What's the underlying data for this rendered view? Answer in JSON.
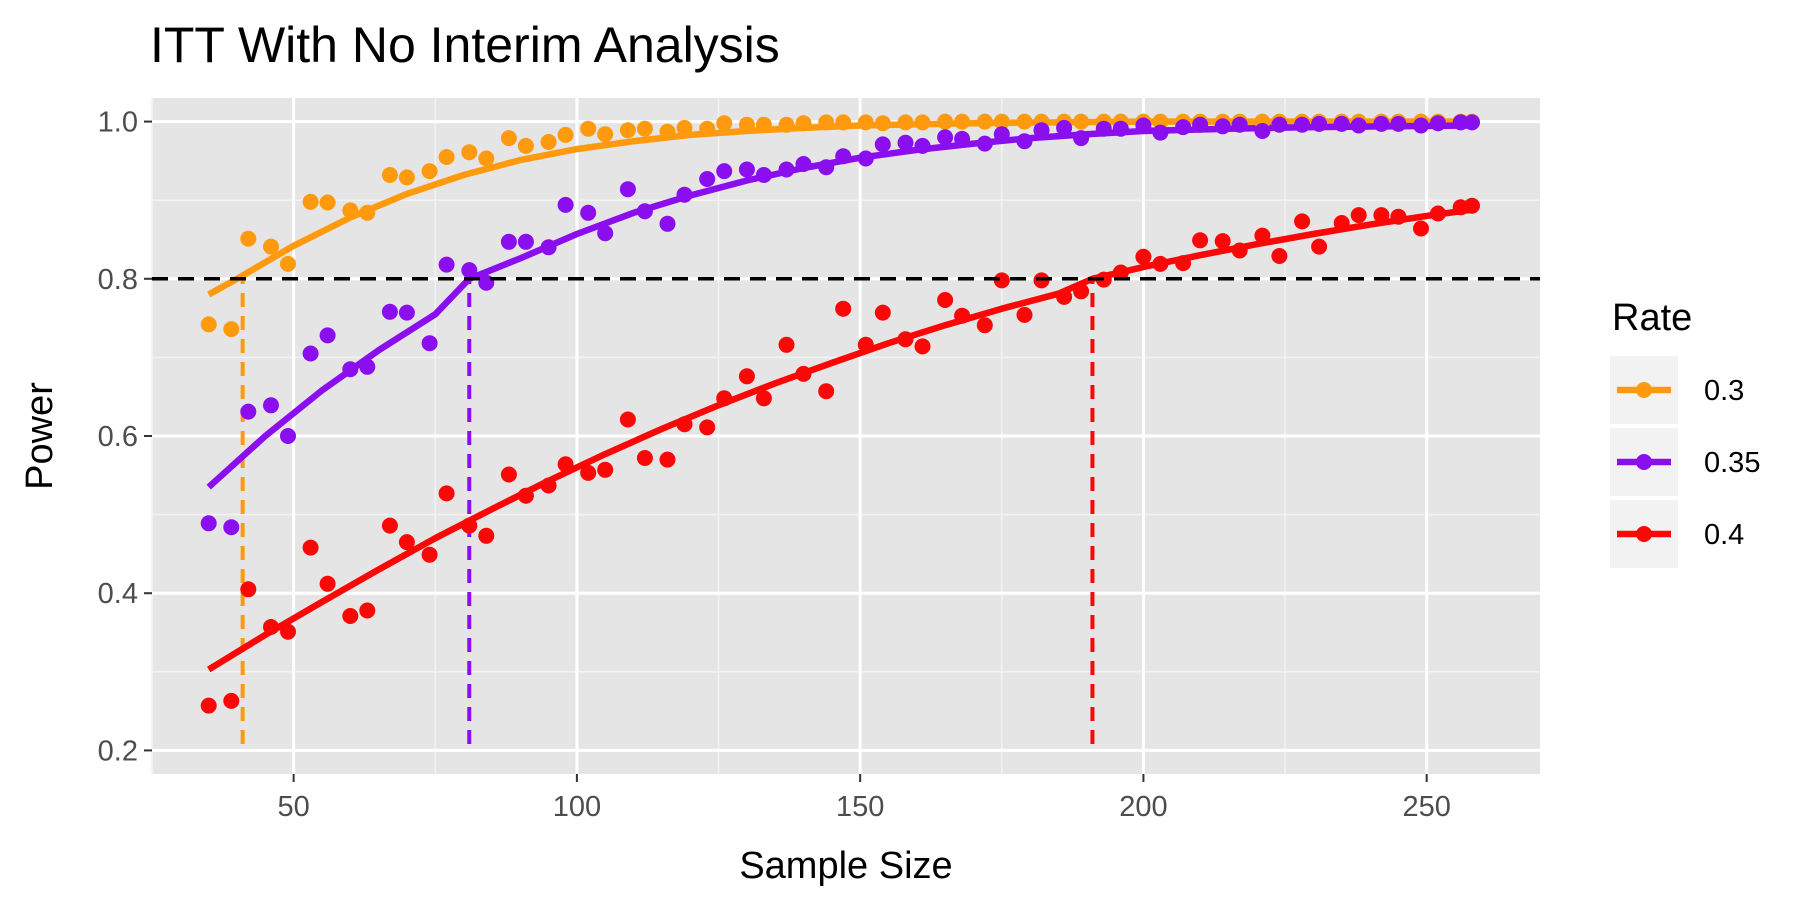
{
  "chart_data": {
    "type": "scatter",
    "title": "ITT With No Interim Analysis",
    "xlabel": "Sample Size",
    "ylabel": "Power",
    "xlim": [
      25,
      270
    ],
    "ylim": [
      0.17,
      1.03
    ],
    "x_ticks": [
      50,
      100,
      150,
      200,
      250
    ],
    "y_ticks": [
      0.2,
      0.4,
      0.6,
      0.8,
      1.0
    ],
    "x_tick_labels": [
      "50",
      "100",
      "150",
      "200",
      "250"
    ],
    "y_tick_labels": [
      "0.2",
      "0.4",
      "0.6",
      "0.8",
      "1.0"
    ],
    "grid": true,
    "background": "#e5e5e5",
    "reference_line": {
      "y": 0.8,
      "style": "dashed",
      "color": "#000000"
    },
    "legend": {
      "title": "Rate",
      "placement": "right"
    },
    "series": [
      {
        "name": "0.3",
        "color": "#ff9a0e",
        "threshold_x": 41,
        "points": [
          [
            35,
            0.742
          ],
          [
            39,
            0.736
          ],
          [
            42,
            0.851
          ],
          [
            46,
            0.841
          ],
          [
            49,
            0.819
          ],
          [
            53,
            0.898
          ],
          [
            56,
            0.897
          ],
          [
            60,
            0.887
          ],
          [
            63,
            0.884
          ],
          [
            67,
            0.932
          ],
          [
            70,
            0.929
          ],
          [
            74,
            0.937
          ],
          [
            77,
            0.955
          ],
          [
            81,
            0.961
          ],
          [
            84,
            0.953
          ],
          [
            88,
            0.979
          ],
          [
            91,
            0.969
          ],
          [
            95,
            0.974
          ],
          [
            98,
            0.983
          ],
          [
            102,
            0.991
          ],
          [
            105,
            0.984
          ],
          [
            109,
            0.989
          ],
          [
            112,
            0.991
          ],
          [
            116,
            0.987
          ],
          [
            119,
            0.992
          ],
          [
            123,
            0.991
          ],
          [
            126,
            0.998
          ],
          [
            130,
            0.996
          ],
          [
            133,
            0.996
          ],
          [
            137,
            0.996
          ],
          [
            140,
            0.998
          ],
          [
            144,
            0.999
          ],
          [
            147,
            0.999
          ],
          [
            151,
            0.999
          ],
          [
            154,
            0.998
          ],
          [
            158,
            0.999
          ],
          [
            161,
            0.999
          ],
          [
            165,
            1.0
          ],
          [
            168,
            1.0
          ],
          [
            172,
            1.0
          ],
          [
            175,
            1.0
          ],
          [
            179,
            1.0
          ],
          [
            182,
            1.0
          ],
          [
            186,
            1.0
          ],
          [
            189,
            1.0
          ],
          [
            193,
            1.0
          ],
          [
            196,
            1.0
          ],
          [
            200,
            1.0
          ],
          [
            203,
            1.0
          ],
          [
            207,
            1.0
          ],
          [
            210,
            1.0
          ],
          [
            214,
            1.0
          ],
          [
            217,
            1.0
          ],
          [
            221,
            1.0
          ],
          [
            224,
            1.0
          ],
          [
            228,
            1.0
          ],
          [
            231,
            1.0
          ],
          [
            235,
            1.0
          ],
          [
            238,
            1.0
          ],
          [
            242,
            1.0
          ],
          [
            245,
            1.0
          ],
          [
            249,
            1.0
          ],
          [
            252,
            1.0
          ],
          [
            256,
            1.0
          ],
          [
            258,
            1.0
          ]
        ],
        "curve": [
          [
            35,
            0.78
          ],
          [
            40,
            0.8
          ],
          [
            50,
            0.842
          ],
          [
            60,
            0.878
          ],
          [
            70,
            0.908
          ],
          [
            80,
            0.932
          ],
          [
            90,
            0.951
          ],
          [
            100,
            0.965
          ],
          [
            110,
            0.975
          ],
          [
            120,
            0.983
          ],
          [
            130,
            0.988
          ],
          [
            140,
            0.992
          ],
          [
            150,
            0.995
          ],
          [
            170,
            0.998
          ],
          [
            200,
            1.0
          ],
          [
            230,
            1.0
          ],
          [
            258,
            1.0
          ]
        ]
      },
      {
        "name": "0.35",
        "color": "#8a0eee",
        "threshold_x": 81,
        "points": [
          [
            35,
            0.489
          ],
          [
            39,
            0.484
          ],
          [
            42,
            0.631
          ],
          [
            46,
            0.639
          ],
          [
            49,
            0.6
          ],
          [
            53,
            0.705
          ],
          [
            56,
            0.728
          ],
          [
            60,
            0.685
          ],
          [
            63,
            0.688
          ],
          [
            67,
            0.758
          ],
          [
            70,
            0.757
          ],
          [
            74,
            0.718
          ],
          [
            77,
            0.818
          ],
          [
            81,
            0.811
          ],
          [
            84,
            0.795
          ],
          [
            88,
            0.847
          ],
          [
            91,
            0.847
          ],
          [
            95,
            0.84
          ],
          [
            98,
            0.894
          ],
          [
            102,
            0.884
          ],
          [
            105,
            0.858
          ],
          [
            109,
            0.914
          ],
          [
            112,
            0.886
          ],
          [
            116,
            0.87
          ],
          [
            119,
            0.907
          ],
          [
            123,
            0.927
          ],
          [
            126,
            0.937
          ],
          [
            130,
            0.939
          ],
          [
            133,
            0.932
          ],
          [
            137,
            0.939
          ],
          [
            140,
            0.946
          ],
          [
            144,
            0.942
          ],
          [
            147,
            0.956
          ],
          [
            151,
            0.953
          ],
          [
            154,
            0.971
          ],
          [
            158,
            0.973
          ],
          [
            161,
            0.969
          ],
          [
            165,
            0.98
          ],
          [
            168,
            0.978
          ],
          [
            172,
            0.972
          ],
          [
            175,
            0.984
          ],
          [
            179,
            0.975
          ],
          [
            182,
            0.989
          ],
          [
            186,
            0.992
          ],
          [
            189,
            0.979
          ],
          [
            193,
            0.991
          ],
          [
            196,
            0.991
          ],
          [
            200,
            0.995
          ],
          [
            203,
            0.986
          ],
          [
            207,
            0.993
          ],
          [
            210,
            0.996
          ],
          [
            214,
            0.994
          ],
          [
            217,
            0.996
          ],
          [
            221,
            0.988
          ],
          [
            224,
            0.996
          ],
          [
            228,
            0.996
          ],
          [
            231,
            0.997
          ],
          [
            235,
            0.997
          ],
          [
            238,
            0.995
          ],
          [
            242,
            0.997
          ],
          [
            245,
            0.997
          ],
          [
            249,
            0.995
          ],
          [
            252,
            0.998
          ],
          [
            256,
            0.999
          ],
          [
            258,
            0.999
          ]
        ],
        "curve": [
          [
            35,
            0.535
          ],
          [
            45,
            0.6
          ],
          [
            55,
            0.658
          ],
          [
            65,
            0.709
          ],
          [
            75,
            0.755
          ],
          [
            81,
            0.8
          ],
          [
            90,
            0.826
          ],
          [
            100,
            0.857
          ],
          [
            110,
            0.884
          ],
          [
            120,
            0.906
          ],
          [
            130,
            0.925
          ],
          [
            140,
            0.941
          ],
          [
            150,
            0.954
          ],
          [
            160,
            0.964
          ],
          [
            170,
            0.972
          ],
          [
            180,
            0.979
          ],
          [
            190,
            0.984
          ],
          [
            200,
            0.988
          ],
          [
            215,
            0.991
          ],
          [
            230,
            0.993
          ],
          [
            245,
            0.994
          ],
          [
            258,
            0.995
          ]
        ]
      },
      {
        "name": "0.4",
        "color": "#fb0707",
        "threshold_x": 191,
        "points": [
          [
            35,
            0.257
          ],
          [
            39,
            0.263
          ],
          [
            42,
            0.405
          ],
          [
            46,
            0.357
          ],
          [
            49,
            0.351
          ],
          [
            53,
            0.458
          ],
          [
            56,
            0.412
          ],
          [
            60,
            0.371
          ],
          [
            63,
            0.378
          ],
          [
            67,
            0.486
          ],
          [
            70,
            0.465
          ],
          [
            74,
            0.449
          ],
          [
            77,
            0.527
          ],
          [
            81,
            0.486
          ],
          [
            84,
            0.473
          ],
          [
            88,
            0.551
          ],
          [
            91,
            0.524
          ],
          [
            95,
            0.537
          ],
          [
            98,
            0.564
          ],
          [
            102,
            0.553
          ],
          [
            105,
            0.557
          ],
          [
            109,
            0.621
          ],
          [
            112,
            0.572
          ],
          [
            116,
            0.57
          ],
          [
            119,
            0.615
          ],
          [
            123,
            0.611
          ],
          [
            126,
            0.648
          ],
          [
            130,
            0.676
          ],
          [
            133,
            0.648
          ],
          [
            137,
            0.716
          ],
          [
            140,
            0.679
          ],
          [
            144,
            0.657
          ],
          [
            147,
            0.762
          ],
          [
            151,
            0.716
          ],
          [
            154,
            0.757
          ],
          [
            158,
            0.723
          ],
          [
            161,
            0.714
          ],
          [
            165,
            0.773
          ],
          [
            168,
            0.753
          ],
          [
            172,
            0.741
          ],
          [
            175,
            0.798
          ],
          [
            179,
            0.754
          ],
          [
            182,
            0.798
          ],
          [
            186,
            0.777
          ],
          [
            189,
            0.784
          ],
          [
            193,
            0.799
          ],
          [
            196,
            0.808
          ],
          [
            200,
            0.828
          ],
          [
            203,
            0.819
          ],
          [
            207,
            0.82
          ],
          [
            210,
            0.849
          ],
          [
            214,
            0.848
          ],
          [
            217,
            0.836
          ],
          [
            221,
            0.855
          ],
          [
            224,
            0.829
          ],
          [
            228,
            0.873
          ],
          [
            231,
            0.841
          ],
          [
            235,
            0.871
          ],
          [
            238,
            0.881
          ],
          [
            242,
            0.881
          ],
          [
            245,
            0.879
          ],
          [
            249,
            0.864
          ],
          [
            252,
            0.883
          ],
          [
            256,
            0.891
          ],
          [
            258,
            0.893
          ]
        ],
        "curve": [
          [
            35,
            0.303
          ],
          [
            45,
            0.347
          ],
          [
            55,
            0.389
          ],
          [
            65,
            0.43
          ],
          [
            75,
            0.47
          ],
          [
            85,
            0.507
          ],
          [
            95,
            0.543
          ],
          [
            105,
            0.577
          ],
          [
            115,
            0.609
          ],
          [
            125,
            0.639
          ],
          [
            135,
            0.667
          ],
          [
            145,
            0.693
          ],
          [
            155,
            0.718
          ],
          [
            165,
            0.741
          ],
          [
            175,
            0.762
          ],
          [
            185,
            0.781
          ],
          [
            191,
            0.8
          ],
          [
            200,
            0.815
          ],
          [
            210,
            0.83
          ],
          [
            220,
            0.844
          ],
          [
            230,
            0.857
          ],
          [
            240,
            0.869
          ],
          [
            250,
            0.88
          ],
          [
            258,
            0.888
          ]
        ]
      }
    ]
  }
}
